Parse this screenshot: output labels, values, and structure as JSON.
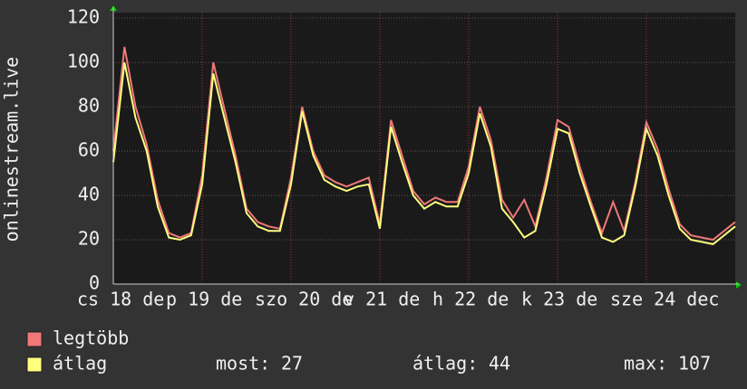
{
  "chart_data": {
    "type": "line",
    "y_label": "onlinestream.live",
    "x": [
      0,
      3,
      6,
      9,
      12,
      15,
      18,
      21,
      24,
      27,
      30,
      33,
      36,
      39,
      42,
      45,
      48,
      51,
      54,
      57,
      60,
      63,
      66,
      69,
      72,
      75,
      78,
      81,
      84,
      87,
      90,
      93,
      96,
      99,
      102,
      105,
      108,
      111,
      114,
      117,
      120,
      123,
      126,
      129,
      132,
      135,
      138,
      141,
      144,
      147,
      150,
      153,
      156,
      159,
      162,
      165,
      168
    ],
    "xlim": [
      0,
      168
    ],
    "xticks": [
      {
        "value": 0,
        "label": "cs 18 de"
      },
      {
        "value": 24,
        "label": "p 19 de"
      },
      {
        "value": 48,
        "label": "szo 20 de"
      },
      {
        "value": 72,
        "label": "v 21 de"
      },
      {
        "value": 96,
        "label": "h 22 de"
      },
      {
        "value": 120,
        "label": "k 23 de"
      },
      {
        "value": 144,
        "label": "sze 24 dec"
      }
    ],
    "ylim": [
      0,
      120
    ],
    "yticks": [
      0,
      20,
      40,
      60,
      80,
      100,
      120
    ],
    "grid": true,
    "series": [
      {
        "name": "legtöbb",
        "color": "#f07878",
        "values": [
          60,
          107,
          80,
          63,
          38,
          23,
          21,
          23,
          49,
          100,
          79,
          58,
          34,
          28,
          26,
          25,
          48,
          80,
          60,
          49,
          46,
          44,
          46,
          48,
          27,
          74,
          58,
          42,
          36,
          39,
          37,
          37,
          53,
          80,
          65,
          38,
          30,
          38,
          26,
          48,
          74,
          71,
          53,
          37,
          23,
          37,
          24,
          46,
          73,
          61,
          43,
          27,
          22,
          21,
          20,
          24,
          28
        ]
      },
      {
        "name": "átlag",
        "color": "#ffff80",
        "values": [
          55,
          100,
          75,
          60,
          35,
          21,
          20,
          22,
          45,
          95,
          75,
          55,
          32,
          26,
          24,
          24,
          45,
          78,
          58,
          47,
          44,
          42,
          44,
          45,
          25,
          71,
          55,
          40,
          34,
          37,
          35,
          35,
          50,
          77,
          62,
          34,
          28,
          21,
          24,
          45,
          70,
          68,
          50,
          35,
          21,
          19,
          22,
          44,
          70,
          58,
          40,
          25,
          20,
          19,
          18,
          22,
          26
        ]
      }
    ],
    "stats": [
      {
        "label": "most:",
        "value": 27
      },
      {
        "label": "átlag:",
        "value": 44
      },
      {
        "label": "max:",
        "value": 107
      }
    ]
  }
}
